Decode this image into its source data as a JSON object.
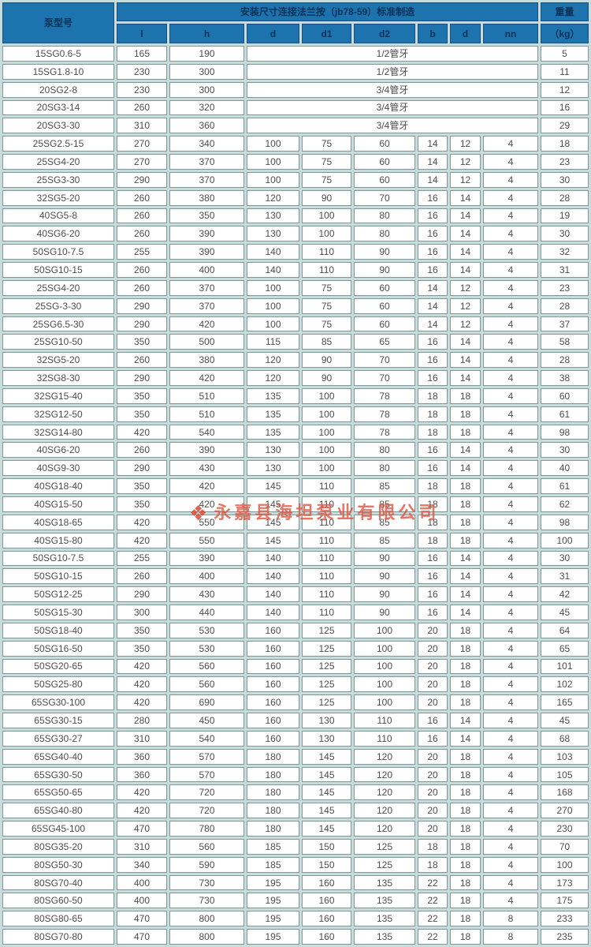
{
  "header": {
    "model_label": "泵型号",
    "group_label": "安装尺寸连接法兰按（jb78-59）标准制造",
    "weight_label": "重量",
    "weight_unit": "（kg）",
    "sub_columns": [
      "l",
      "h",
      "d",
      "d1",
      "d2",
      "b",
      "d",
      "nn"
    ]
  },
  "watermark": {
    "logo_icon": "❖",
    "text": "永嘉县海坦泵业有限公司",
    "color": "#e25642"
  },
  "colors": {
    "header_bg": "#1c73ae",
    "header_text": "#0b3257",
    "table_gap_bg": "#c9dcdc",
    "cell_border": "#7f9898",
    "cell_text": "#4d4d4d"
  },
  "rows": [
    {
      "model": "15SG0.6-5",
      "l": "165",
      "h": "190",
      "merged": "1/2管牙",
      "kg": "5"
    },
    {
      "model": "15SG1.8-10",
      "l": "230",
      "h": "300",
      "merged": "1/2管牙",
      "kg": "11"
    },
    {
      "model": "20SG2-8",
      "l": "230",
      "h": "300",
      "merged": "3/4管牙",
      "kg": "12"
    },
    {
      "model": "20SG3-14",
      "l": "260",
      "h": "320",
      "merged": "3/4管牙",
      "kg": "16"
    },
    {
      "model": "20SG3-30",
      "l": "310",
      "h": "360",
      "merged": "3/4管牙",
      "kg": "29"
    },
    {
      "model": "25SG2.5-15",
      "l": "270",
      "h": "340",
      "d": "100",
      "d1": "75",
      "d2": "60",
      "b": "14",
      "d_bolt": "12",
      "nn": "4",
      "kg": "18"
    },
    {
      "model": "25SG4-20",
      "l": "270",
      "h": "370",
      "d": "100",
      "d1": "75",
      "d2": "60",
      "b": "14",
      "d_bolt": "12",
      "nn": "4",
      "kg": "23"
    },
    {
      "model": "25SG3-30",
      "l": "290",
      "h": "370",
      "d": "100",
      "d1": "75",
      "d2": "60",
      "b": "14",
      "d_bolt": "12",
      "nn": "4",
      "kg": "30"
    },
    {
      "model": "32SG5-20",
      "l": "260",
      "h": "380",
      "d": "120",
      "d1": "90",
      "d2": "70",
      "b": "16",
      "d_bolt": "14",
      "nn": "4",
      "kg": "28"
    },
    {
      "model": "40SG5-8",
      "l": "260",
      "h": "350",
      "d": "130",
      "d1": "100",
      "d2": "80",
      "b": "16",
      "d_bolt": "14",
      "nn": "4",
      "kg": "19"
    },
    {
      "model": "40SG6-20",
      "l": "260",
      "h": "390",
      "d": "130",
      "d1": "100",
      "d2": "80",
      "b": "16",
      "d_bolt": "14",
      "nn": "4",
      "kg": "30"
    },
    {
      "model": "50SG10-7.5",
      "l": "255",
      "h": "390",
      "d": "140",
      "d1": "110",
      "d2": "90",
      "b": "16",
      "d_bolt": "14",
      "nn": "4",
      "kg": "32"
    },
    {
      "model": "50SG10-15",
      "l": "260",
      "h": "400",
      "d": "140",
      "d1": "110",
      "d2": "90",
      "b": "16",
      "d_bolt": "14",
      "nn": "4",
      "kg": "31"
    },
    {
      "model": "25SG4-20",
      "l": "260",
      "h": "370",
      "d": "100",
      "d1": "75",
      "d2": "60",
      "b": "14",
      "d_bolt": "12",
      "nn": "4",
      "kg": "23"
    },
    {
      "model": "25SG-3-30",
      "l": "290",
      "h": "370",
      "d": "100",
      "d1": "75",
      "d2": "60",
      "b": "14",
      "d_bolt": "12",
      "nn": "4",
      "kg": "28"
    },
    {
      "model": "25SG6.5-30",
      "l": "290",
      "h": "420",
      "d": "100",
      "d1": "75",
      "d2": "60",
      "b": "14",
      "d_bolt": "12",
      "nn": "4",
      "kg": "37"
    },
    {
      "model": "25SG10-50",
      "l": "350",
      "h": "500",
      "d": "115",
      "d1": "85",
      "d2": "65",
      "b": "16",
      "d_bolt": "14",
      "nn": "4",
      "kg": "58"
    },
    {
      "model": "32SG5-20",
      "l": "260",
      "h": "380",
      "d": "120",
      "d1": "90",
      "d2": "70",
      "b": "16",
      "d_bolt": "14",
      "nn": "4",
      "kg": "28"
    },
    {
      "model": "32SG8-30",
      "l": "290",
      "h": "420",
      "d": "120",
      "d1": "90",
      "d2": "70",
      "b": "16",
      "d_bolt": "14",
      "nn": "4",
      "kg": "38"
    },
    {
      "model": "32SG15-40",
      "l": "350",
      "h": "510",
      "d": "135",
      "d1": "100",
      "d2": "78",
      "b": "18",
      "d_bolt": "18",
      "nn": "4",
      "kg": "60"
    },
    {
      "model": "32SG12-50",
      "l": "350",
      "h": "510",
      "d": "135",
      "d1": "100",
      "d2": "78",
      "b": "18",
      "d_bolt": "18",
      "nn": "4",
      "kg": "61"
    },
    {
      "model": "32SG14-80",
      "l": "420",
      "h": "540",
      "d": "135",
      "d1": "100",
      "d2": "78",
      "b": "18",
      "d_bolt": "18",
      "nn": "4",
      "kg": "98"
    },
    {
      "model": "40SG6-20",
      "l": "260",
      "h": "390",
      "d": "130",
      "d1": "100",
      "d2": "80",
      "b": "16",
      "d_bolt": "14",
      "nn": "4",
      "kg": "30"
    },
    {
      "model": "40SG9-30",
      "l": "290",
      "h": "430",
      "d": "130",
      "d1": "100",
      "d2": "80",
      "b": "16",
      "d_bolt": "14",
      "nn": "4",
      "kg": "40"
    },
    {
      "model": "40SG18-40",
      "l": "350",
      "h": "420",
      "d": "145",
      "d1": "110",
      "d2": "85",
      "b": "18",
      "d_bolt": "18",
      "nn": "4",
      "kg": "61"
    },
    {
      "model": "40SG15-50",
      "l": "350",
      "h": "420",
      "d": "145",
      "d1": "110",
      "d2": "85",
      "b": "18",
      "d_bolt": "18",
      "nn": "4",
      "kg": "62"
    },
    {
      "model": "40SG18-65",
      "l": "420",
      "h": "550",
      "d": "145",
      "d1": "110",
      "d2": "85",
      "b": "18",
      "d_bolt": "18",
      "nn": "4",
      "kg": "98"
    },
    {
      "model": "40SG15-80",
      "l": "420",
      "h": "550",
      "d": "145",
      "d1": "110",
      "d2": "85",
      "b": "18",
      "d_bolt": "18",
      "nn": "4",
      "kg": "100"
    },
    {
      "model": "50SG10-7.5",
      "l": "255",
      "h": "390",
      "d": "140",
      "d1": "110",
      "d2": "90",
      "b": "16",
      "d_bolt": "14",
      "nn": "4",
      "kg": "30"
    },
    {
      "model": "50SG10-15",
      "l": "260",
      "h": "400",
      "d": "140",
      "d1": "110",
      "d2": "90",
      "b": "16",
      "d_bolt": "14",
      "nn": "4",
      "kg": "31"
    },
    {
      "model": "50SG12-25",
      "l": "290",
      "h": "430",
      "d": "140",
      "d1": "110",
      "d2": "90",
      "b": "16",
      "d_bolt": "14",
      "nn": "4",
      "kg": "42"
    },
    {
      "model": "50SG15-30",
      "l": "300",
      "h": "440",
      "d": "140",
      "d1": "110",
      "d2": "90",
      "b": "16",
      "d_bolt": "14",
      "nn": "4",
      "kg": "45"
    },
    {
      "model": "50SG18-40",
      "l": "350",
      "h": "530",
      "d": "160",
      "d1": "125",
      "d2": "100",
      "b": "20",
      "d_bolt": "18",
      "nn": "4",
      "kg": "64"
    },
    {
      "model": "50SG16-50",
      "l": "350",
      "h": "530",
      "d": "160",
      "d1": "125",
      "d2": "100",
      "b": "20",
      "d_bolt": "18",
      "nn": "4",
      "kg": "65"
    },
    {
      "model": "50SG20-65",
      "l": "420",
      "h": "560",
      "d": "160",
      "d1": "125",
      "d2": "100",
      "b": "20",
      "d_bolt": "18",
      "nn": "4",
      "kg": "101"
    },
    {
      "model": "50SG25-80",
      "l": "420",
      "h": "560",
      "d": "160",
      "d1": "125",
      "d2": "100",
      "b": "20",
      "d_bolt": "18",
      "nn": "4",
      "kg": "102"
    },
    {
      "model": "65SG30-100",
      "l": "420",
      "h": "690",
      "d": "160",
      "d1": "125",
      "d2": "100",
      "b": "20",
      "d_bolt": "18",
      "nn": "4",
      "kg": "165"
    },
    {
      "model": "65SG30-15",
      "l": "280",
      "h": "450",
      "d": "160",
      "d1": "130",
      "d2": "110",
      "b": "16",
      "d_bolt": "14",
      "nn": "4",
      "kg": "45"
    },
    {
      "model": "65SG30-27",
      "l": "310",
      "h": "540",
      "d": "160",
      "d1": "130",
      "d2": "110",
      "b": "16",
      "d_bolt": "14",
      "nn": "4",
      "kg": "68"
    },
    {
      "model": "65SG40-40",
      "l": "360",
      "h": "570",
      "d": "180",
      "d1": "145",
      "d2": "120",
      "b": "20",
      "d_bolt": "18",
      "nn": "4",
      "kg": "103"
    },
    {
      "model": "65SG30-50",
      "l": "360",
      "h": "570",
      "d": "180",
      "d1": "145",
      "d2": "120",
      "b": "20",
      "d_bolt": "18",
      "nn": "4",
      "kg": "105"
    },
    {
      "model": "65SG50-65",
      "l": "420",
      "h": "720",
      "d": "180",
      "d1": "145",
      "d2": "120",
      "b": "20",
      "d_bolt": "18",
      "nn": "4",
      "kg": "168"
    },
    {
      "model": "65SG40-80",
      "l": "420",
      "h": "720",
      "d": "180",
      "d1": "145",
      "d2": "120",
      "b": "20",
      "d_bolt": "18",
      "nn": "4",
      "kg": "270"
    },
    {
      "model": "65SG45-100",
      "l": "470",
      "h": "780",
      "d": "180",
      "d1": "145",
      "d2": "120",
      "b": "20",
      "d_bolt": "18",
      "nn": "4",
      "kg": "230"
    },
    {
      "model": "80SG35-20",
      "l": "310",
      "h": "560",
      "d": "185",
      "d1": "150",
      "d2": "125",
      "b": "18",
      "d_bolt": "18",
      "nn": "4",
      "kg": "70"
    },
    {
      "model": "80SG50-30",
      "l": "340",
      "h": "590",
      "d": "185",
      "d1": "150",
      "d2": "125",
      "b": "18",
      "d_bolt": "18",
      "nn": "4",
      "kg": "100"
    },
    {
      "model": "80SG70-40",
      "l": "400",
      "h": "730",
      "d": "195",
      "d1": "160",
      "d2": "135",
      "b": "22",
      "d_bolt": "18",
      "nn": "4",
      "kg": "173"
    },
    {
      "model": "80SG60-50",
      "l": "400",
      "h": "730",
      "d": "195",
      "d1": "160",
      "d2": "135",
      "b": "22",
      "d_bolt": "18",
      "nn": "4",
      "kg": "175"
    },
    {
      "model": "80SG80-65",
      "l": "470",
      "h": "800",
      "d": "195",
      "d1": "160",
      "d2": "135",
      "b": "22",
      "d_bolt": "18",
      "nn": "8",
      "kg": "233"
    },
    {
      "model": "80SG70-80",
      "l": "470",
      "h": "800",
      "d": "195",
      "d1": "160",
      "d2": "135",
      "b": "22",
      "d_bolt": "18",
      "nn": "8",
      "kg": "235"
    }
  ]
}
